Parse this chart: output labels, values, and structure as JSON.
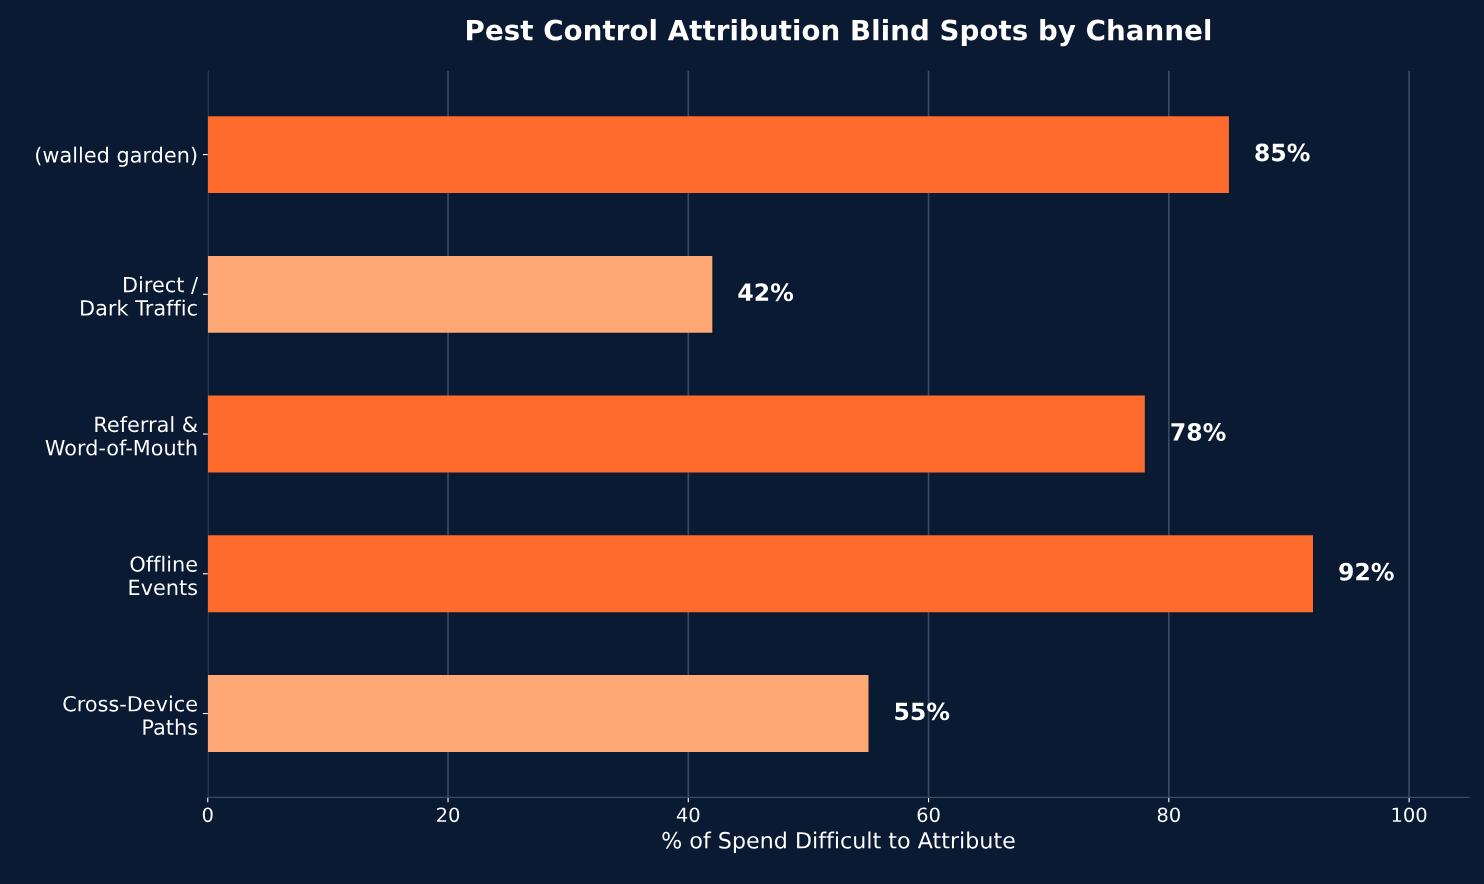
{
  "chart_data": {
    "type": "bar",
    "orientation": "horizontal",
    "title": "Pest Control Attribution Blind Spots by Channel",
    "xlabel": "% of Spend Difficult to Attribute",
    "categories": [
      "(walled garden)",
      "Direct /\nDark Traffic",
      "Referral &\nWord-of-Mouth",
      "Offline\nEvents",
      "Cross-Device\nPaths"
    ],
    "values": [
      85,
      42,
      78,
      92,
      55
    ],
    "colors": [
      "#ff6b2d",
      "#ffa775",
      "#ff6b2d",
      "#ff6b2d",
      "#ffa775"
    ],
    "value_labels": [
      "85%",
      "42%",
      "78%",
      "92%",
      "55%"
    ],
    "xlim": [
      0,
      105
    ],
    "xticks": [
      0,
      20,
      40,
      60,
      80,
      100
    ],
    "grid": "x",
    "legend": false
  }
}
